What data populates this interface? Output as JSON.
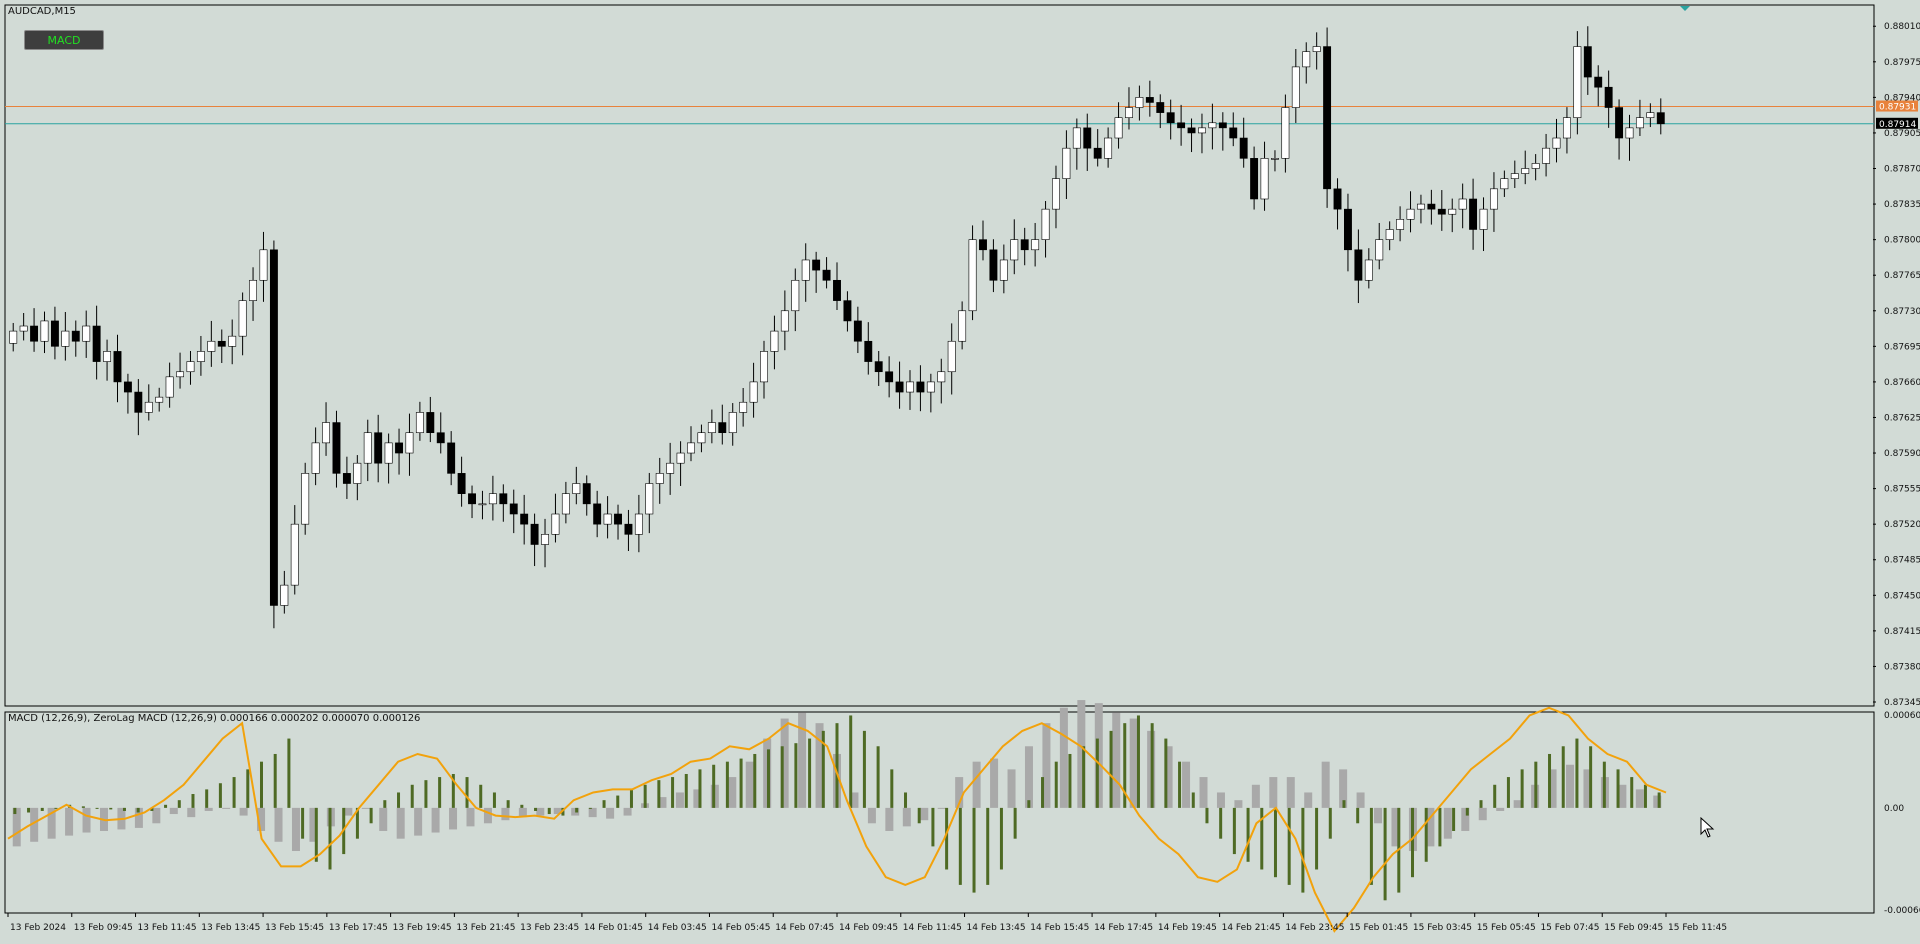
{
  "symbol_label": "AUDCAD,M15",
  "indicator_button": "MACD",
  "indicator_label": "MACD (12,26,9), ZeroLag MACD (12,26,9) 0.000166 0.000202 0.000070 0.000126",
  "colors": {
    "background": "#d2dbd6",
    "bull_candle": "#ffffff",
    "bear_candle": "#000000",
    "ask_line": "#e8823c",
    "bid_line": "#2aa3a0",
    "macd_histogram": "#4e6a24",
    "signal_histogram": "#a9a9a9",
    "zerolag_line": "#f2a20c"
  },
  "chart_data": [
    {
      "type": "candlestick",
      "title": "AUDCAD,M15",
      "ylim": [
        0.87345,
        0.88025
      ],
      "y_ticks": [
        "0.88010",
        "0.87975",
        "0.87940",
        "0.87905",
        "0.87870",
        "0.87835",
        "0.87800",
        "0.87765",
        "0.87730",
        "0.87695",
        "0.87660",
        "0.87625",
        "0.87590",
        "0.87555",
        "0.87520",
        "0.87485",
        "0.87450",
        "0.87415",
        "0.87380",
        "0.87345"
      ],
      "x_ticks": [
        "13 Feb 2024",
        "13 Feb 09:45",
        "13 Feb 11:45",
        "13 Feb 13:45",
        "13 Feb 15:45",
        "13 Feb 17:45",
        "13 Feb 19:45",
        "13 Feb 21:45",
        "13 Feb 23:45",
        "14 Feb 01:45",
        "14 Feb 03:45",
        "14 Feb 05:45",
        "14 Feb 07:45",
        "14 Feb 09:45",
        "14 Feb 11:45",
        "14 Feb 13:45",
        "14 Feb 15:45",
        "14 Feb 17:45",
        "14 Feb 19:45",
        "14 Feb 21:45",
        "14 Feb 23:45",
        "15 Feb 01:45",
        "15 Feb 03:45",
        "15 Feb 05:45",
        "15 Feb 07:45",
        "15 Feb 09:45",
        "15 Feb 11:45"
      ],
      "price_labels": {
        "ask": "0.87931",
        "bid": "0.87914"
      },
      "price_levels": {
        "ask": 0.87931,
        "bid": 0.87914
      },
      "candles": [
        0.8771,
        0.87715,
        0.877,
        0.8772,
        0.87695,
        0.8771,
        0.877,
        0.87715,
        0.8768,
        0.8769,
        0.8766,
        0.8765,
        0.8763,
        0.8764,
        0.87645,
        0.87665,
        0.8767,
        0.8768,
        0.8769,
        0.877,
        0.87695,
        0.87705,
        0.8774,
        0.8776,
        0.8779,
        0.8744,
        0.8746,
        0.8752,
        0.8757,
        0.876,
        0.8762,
        0.8757,
        0.8756,
        0.8758,
        0.8761,
        0.8758,
        0.876,
        0.8759,
        0.8761,
        0.8763,
        0.8761,
        0.876,
        0.8757,
        0.8755,
        0.8754,
        0.8754,
        0.8755,
        0.8754,
        0.8753,
        0.8752,
        0.875,
        0.8751,
        0.8753,
        0.8755,
        0.8756,
        0.8754,
        0.8752,
        0.8753,
        0.8752,
        0.8751,
        0.8753,
        0.8756,
        0.8757,
        0.8758,
        0.8759,
        0.876,
        0.8761,
        0.8762,
        0.8761,
        0.8763,
        0.8764,
        0.8766,
        0.8769,
        0.8771,
        0.8773,
        0.8776,
        0.8778,
        0.8777,
        0.8776,
        0.8774,
        0.8772,
        0.877,
        0.8768,
        0.8767,
        0.8766,
        0.8765,
        0.8766,
        0.8765,
        0.8766,
        0.8767,
        0.877,
        0.8773,
        0.878,
        0.8779,
        0.8776,
        0.8778,
        0.878,
        0.8779,
        0.878,
        0.8783,
        0.8786,
        0.8789,
        0.8791,
        0.8789,
        0.8788,
        0.879,
        0.8792,
        0.8793,
        0.8794,
        0.87935,
        0.87925,
        0.87915,
        0.8791,
        0.87905,
        0.8791,
        0.87915,
        0.8791,
        0.879,
        0.8788,
        0.8784,
        0.8788,
        0.8788,
        0.8793,
        0.8797,
        0.87985,
        0.8799,
        0.8785,
        0.8783,
        0.8779,
        0.8776,
        0.8778,
        0.878,
        0.8781,
        0.8782,
        0.8783,
        0.87835,
        0.8783,
        0.87825,
        0.8783,
        0.8784,
        0.8781,
        0.8783,
        0.8785,
        0.8786,
        0.87865,
        0.8787,
        0.87875,
        0.8789,
        0.879,
        0.8792,
        0.8799,
        0.8796,
        0.8795,
        0.8793,
        0.879,
        0.8791,
        0.8792,
        0.87925,
        0.87914
      ],
      "macd_hist": [
        -4e-05,
        -3e-05,
        -2e-05,
        0.0,
        2e-05,
        1e-05,
        0.0,
        -1e-05,
        -2e-05,
        -3e-05,
        -2e-05,
        2e-05,
        5e-05,
        9e-05,
        0.00012,
        0.00016,
        0.0002,
        0.00025,
        0.0003,
        0.00035,
        0.00045,
        -0.0002,
        -0.00035,
        -0.0004,
        -0.0003,
        -0.0002,
        -0.0001,
        5e-05,
        0.0001,
        0.00015,
        0.00018,
        0.0002,
        0.00022,
        0.0002,
        0.00015,
        0.0001,
        5e-05,
        2e-05,
        -2e-05,
        -4e-05,
        -5e-05,
        -3e-05,
        0.0,
        5e-05,
        8e-05,
        0.00012,
        0.00015,
        0.00018,
        0.0002,
        0.00022,
        0.00025,
        0.00028,
        0.0003,
        0.00032,
        0.00035,
        0.00038,
        0.0004,
        0.00042,
        0.00045,
        0.0005,
        0.00055,
        0.0006,
        0.0005,
        0.0004,
        0.00025,
        0.0001,
        -0.0001,
        -0.00025,
        -0.0004,
        -0.0005,
        -0.00055,
        -0.0005,
        -0.0004,
        -0.0002,
        5e-05,
        0.0002,
        0.0003,
        0.00035,
        0.0004,
        0.00045,
        0.0005,
        0.00055,
        0.0006,
        0.00055,
        0.00045,
        0.0003,
        0.0001,
        -0.0001,
        -0.0002,
        -0.0003,
        -0.00035,
        -0.0004,
        -0.00045,
        -0.0005,
        -0.00055,
        -0.0004,
        -0.0002,
        5e-05,
        -0.0001,
        -0.0005,
        -0.0006,
        -0.00055,
        -0.00045,
        -0.00035,
        -0.00025,
        -0.00015,
        -5e-05,
        5e-05,
        0.00015,
        0.0002,
        0.00025,
        0.0003,
        0.00035,
        0.0004,
        0.00045,
        0.0004,
        0.0003,
        0.00025,
        0.0002,
        0.00015,
        0.0001
      ],
      "signal_hist": [
        -0.00025,
        -0.00022,
        -0.0002,
        -0.00018,
        -0.00016,
        -0.00015,
        -0.00014,
        -0.00013,
        -0.0001,
        -4e-05,
        -6e-05,
        -2e-05,
        0.0,
        -5e-05,
        -0.00015,
        -0.00022,
        -0.00028,
        -0.00022,
        -0.00012,
        -5e-05,
        0.0,
        -0.00015,
        -0.0002,
        -0.00018,
        -0.00016,
        -0.00014,
        -0.00012,
        -0.0001,
        -8e-05,
        -6e-05,
        -5e-05,
        -4e-05,
        -5e-05,
        -6e-05,
        -7e-05,
        -5e-05,
        3e-05,
        7e-05,
        0.0001,
        0.00012,
        0.00015,
        0.0002,
        0.0003,
        0.00045,
        0.00058,
        0.00062,
        0.00055,
        0.00035,
        0.0001,
        -0.0001,
        -0.00015,
        -0.00012,
        -8e-05,
        0.0,
        0.0002,
        0.0003,
        0.00032,
        0.00025,
        0.0004,
        0.00055,
        0.00065,
        0.0007,
        0.00068,
        0.00062,
        0.00058,
        0.0005,
        0.0004,
        0.0003,
        0.0002,
        0.0001,
        5e-05,
        0.00015,
        0.0002,
        0.0002,
        0.0001,
        0.0003,
        0.00025,
        0.0001,
        -0.0001,
        -0.00025,
        -0.00028,
        -0.00025,
        -0.0002,
        -0.00015,
        -8e-05,
        -2e-05,
        5e-05,
        0.00015,
        0.00025,
        0.00028,
        0.00025,
        0.0002,
        0.00015,
        0.00012,
        8e-05
      ],
      "zerolag_line": [
        -0.0002,
        -0.00012,
        -5e-05,
        2e-05,
        -5e-05,
        -8e-05,
        -7e-05,
        -3e-05,
        5e-05,
        0.00015,
        0.0003,
        0.00045,
        0.00055,
        -0.0002,
        -0.00038,
        -0.00038,
        -0.0003,
        -0.00018,
        0.0,
        0.00015,
        0.0003,
        0.00035,
        0.00032,
        0.00015,
        0.0,
        -5e-05,
        -6e-05,
        -5e-05,
        -7e-05,
        5e-05,
        0.0001,
        0.00012,
        0.00012,
        0.00018,
        0.00022,
        0.0003,
        0.00032,
        0.0004,
        0.00038,
        0.00045,
        0.00055,
        0.0005,
        0.0004,
        5e-05,
        -0.00025,
        -0.00045,
        -0.0005,
        -0.00045,
        -0.0002,
        0.0001,
        0.00025,
        0.0004,
        0.0005,
        0.00055,
        0.00048,
        0.0004,
        0.00028,
        0.00015,
        -5e-05,
        -0.0002,
        -0.0003,
        -0.00045,
        -0.00048,
        -0.0004,
        -0.0001,
        0.0,
        -0.0002,
        -0.00055,
        -0.0008,
        -0.00065,
        -0.00045,
        -0.0003,
        -0.0002,
        -5e-05,
        0.0001,
        0.00025,
        0.00035,
        0.00045,
        0.0006,
        0.00065,
        0.0006,
        0.00045,
        0.00035,
        0.0003,
        0.00015,
        0.0001
      ],
      "ylim_indicator": [
        -0.000663,
        0.000603
      ],
      "y_ticks_indicator": [
        "0.000603",
        "0.00",
        "-0.000663"
      ]
    }
  ]
}
